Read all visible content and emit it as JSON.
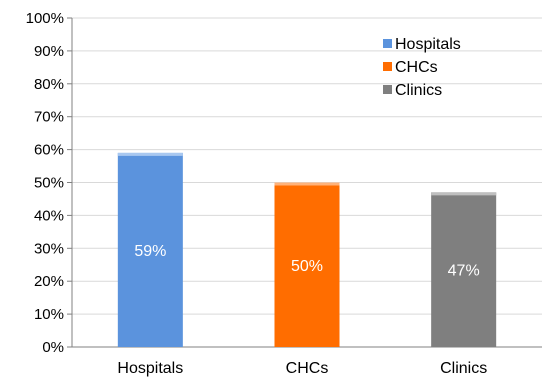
{
  "chart_data": {
    "type": "bar",
    "categories": [
      "Hospitals",
      "CHCs",
      "Clinics"
    ],
    "values": [
      59,
      50,
      47
    ],
    "data_labels": [
      "59%",
      "50%",
      "47%"
    ],
    "colors": [
      "#5b93dd",
      "#ff6d00",
      "#7f7f7f"
    ],
    "cap_colors": [
      "#a9c8f0",
      "#ffb27a",
      "#bfbfbf"
    ],
    "ylim": [
      0,
      100
    ],
    "yticks": [
      "0%",
      "10%",
      "20%",
      "30%",
      "40%",
      "50%",
      "60%",
      "70%",
      "80%",
      "90%",
      "100%"
    ],
    "grid": true,
    "legend": {
      "position": "top-right",
      "entries": [
        "Hospitals",
        "CHCs",
        "Clinics"
      ]
    },
    "title": "",
    "xlabel": "",
    "ylabel": ""
  }
}
